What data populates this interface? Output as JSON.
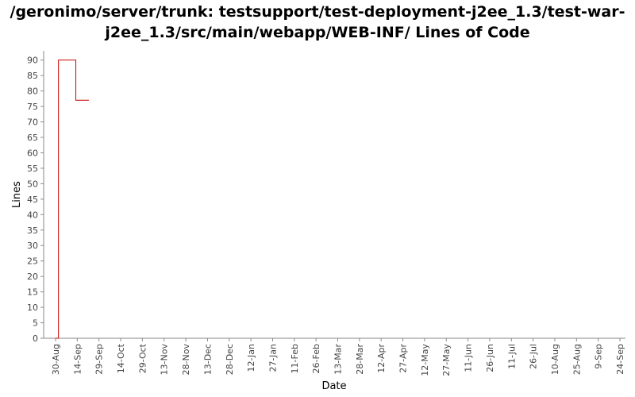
{
  "title_line1": "/geronimo/server/trunk: testsupport/test-deployment-j2ee_1.3/test-war-",
  "title_line2": "j2ee_1.3/src/main/webapp/WEB-INF/ Lines of Code",
  "chart_data": {
    "type": "line",
    "title": "/geronimo/server/trunk: testsupport/test-deployment-j2ee_1.3/test-war-j2ee_1.3/src/main/webapp/WEB-INF/ Lines of Code",
    "xlabel": "Date",
    "ylabel": "Lines",
    "ylim": [
      0,
      93
    ],
    "y_ticks": [
      0,
      5,
      10,
      15,
      20,
      25,
      30,
      35,
      40,
      45,
      50,
      55,
      60,
      65,
      70,
      75,
      80,
      85,
      90
    ],
    "x_ticks": [
      "30-Aug",
      "14-Sep",
      "29-Sep",
      "14-Oct",
      "29-Oct",
      "13-Nov",
      "28-Nov",
      "13-Dec",
      "28-Dec",
      "12-Jan",
      "27-Jan",
      "11-Feb",
      "26-Feb",
      "13-Mar",
      "28-Mar",
      "12-Apr",
      "27-Apr",
      "12-May",
      "27-May",
      "11-Jun",
      "26-Jun",
      "11-Jul",
      "26-Jul",
      "10-Aug",
      "25-Aug",
      "9-Sep",
      "24-Sep"
    ],
    "x_day_offsets_comment": "x values are dates; series given as step points",
    "series": [
      {
        "color": "#cc0000",
        "step": true,
        "x": [
          "30-Aug",
          "1-Sep",
          "13-Sep",
          "22-Sep"
        ],
        "y": [
          0,
          90,
          77,
          77
        ]
      }
    ],
    "grid": false,
    "legend": "none"
  }
}
